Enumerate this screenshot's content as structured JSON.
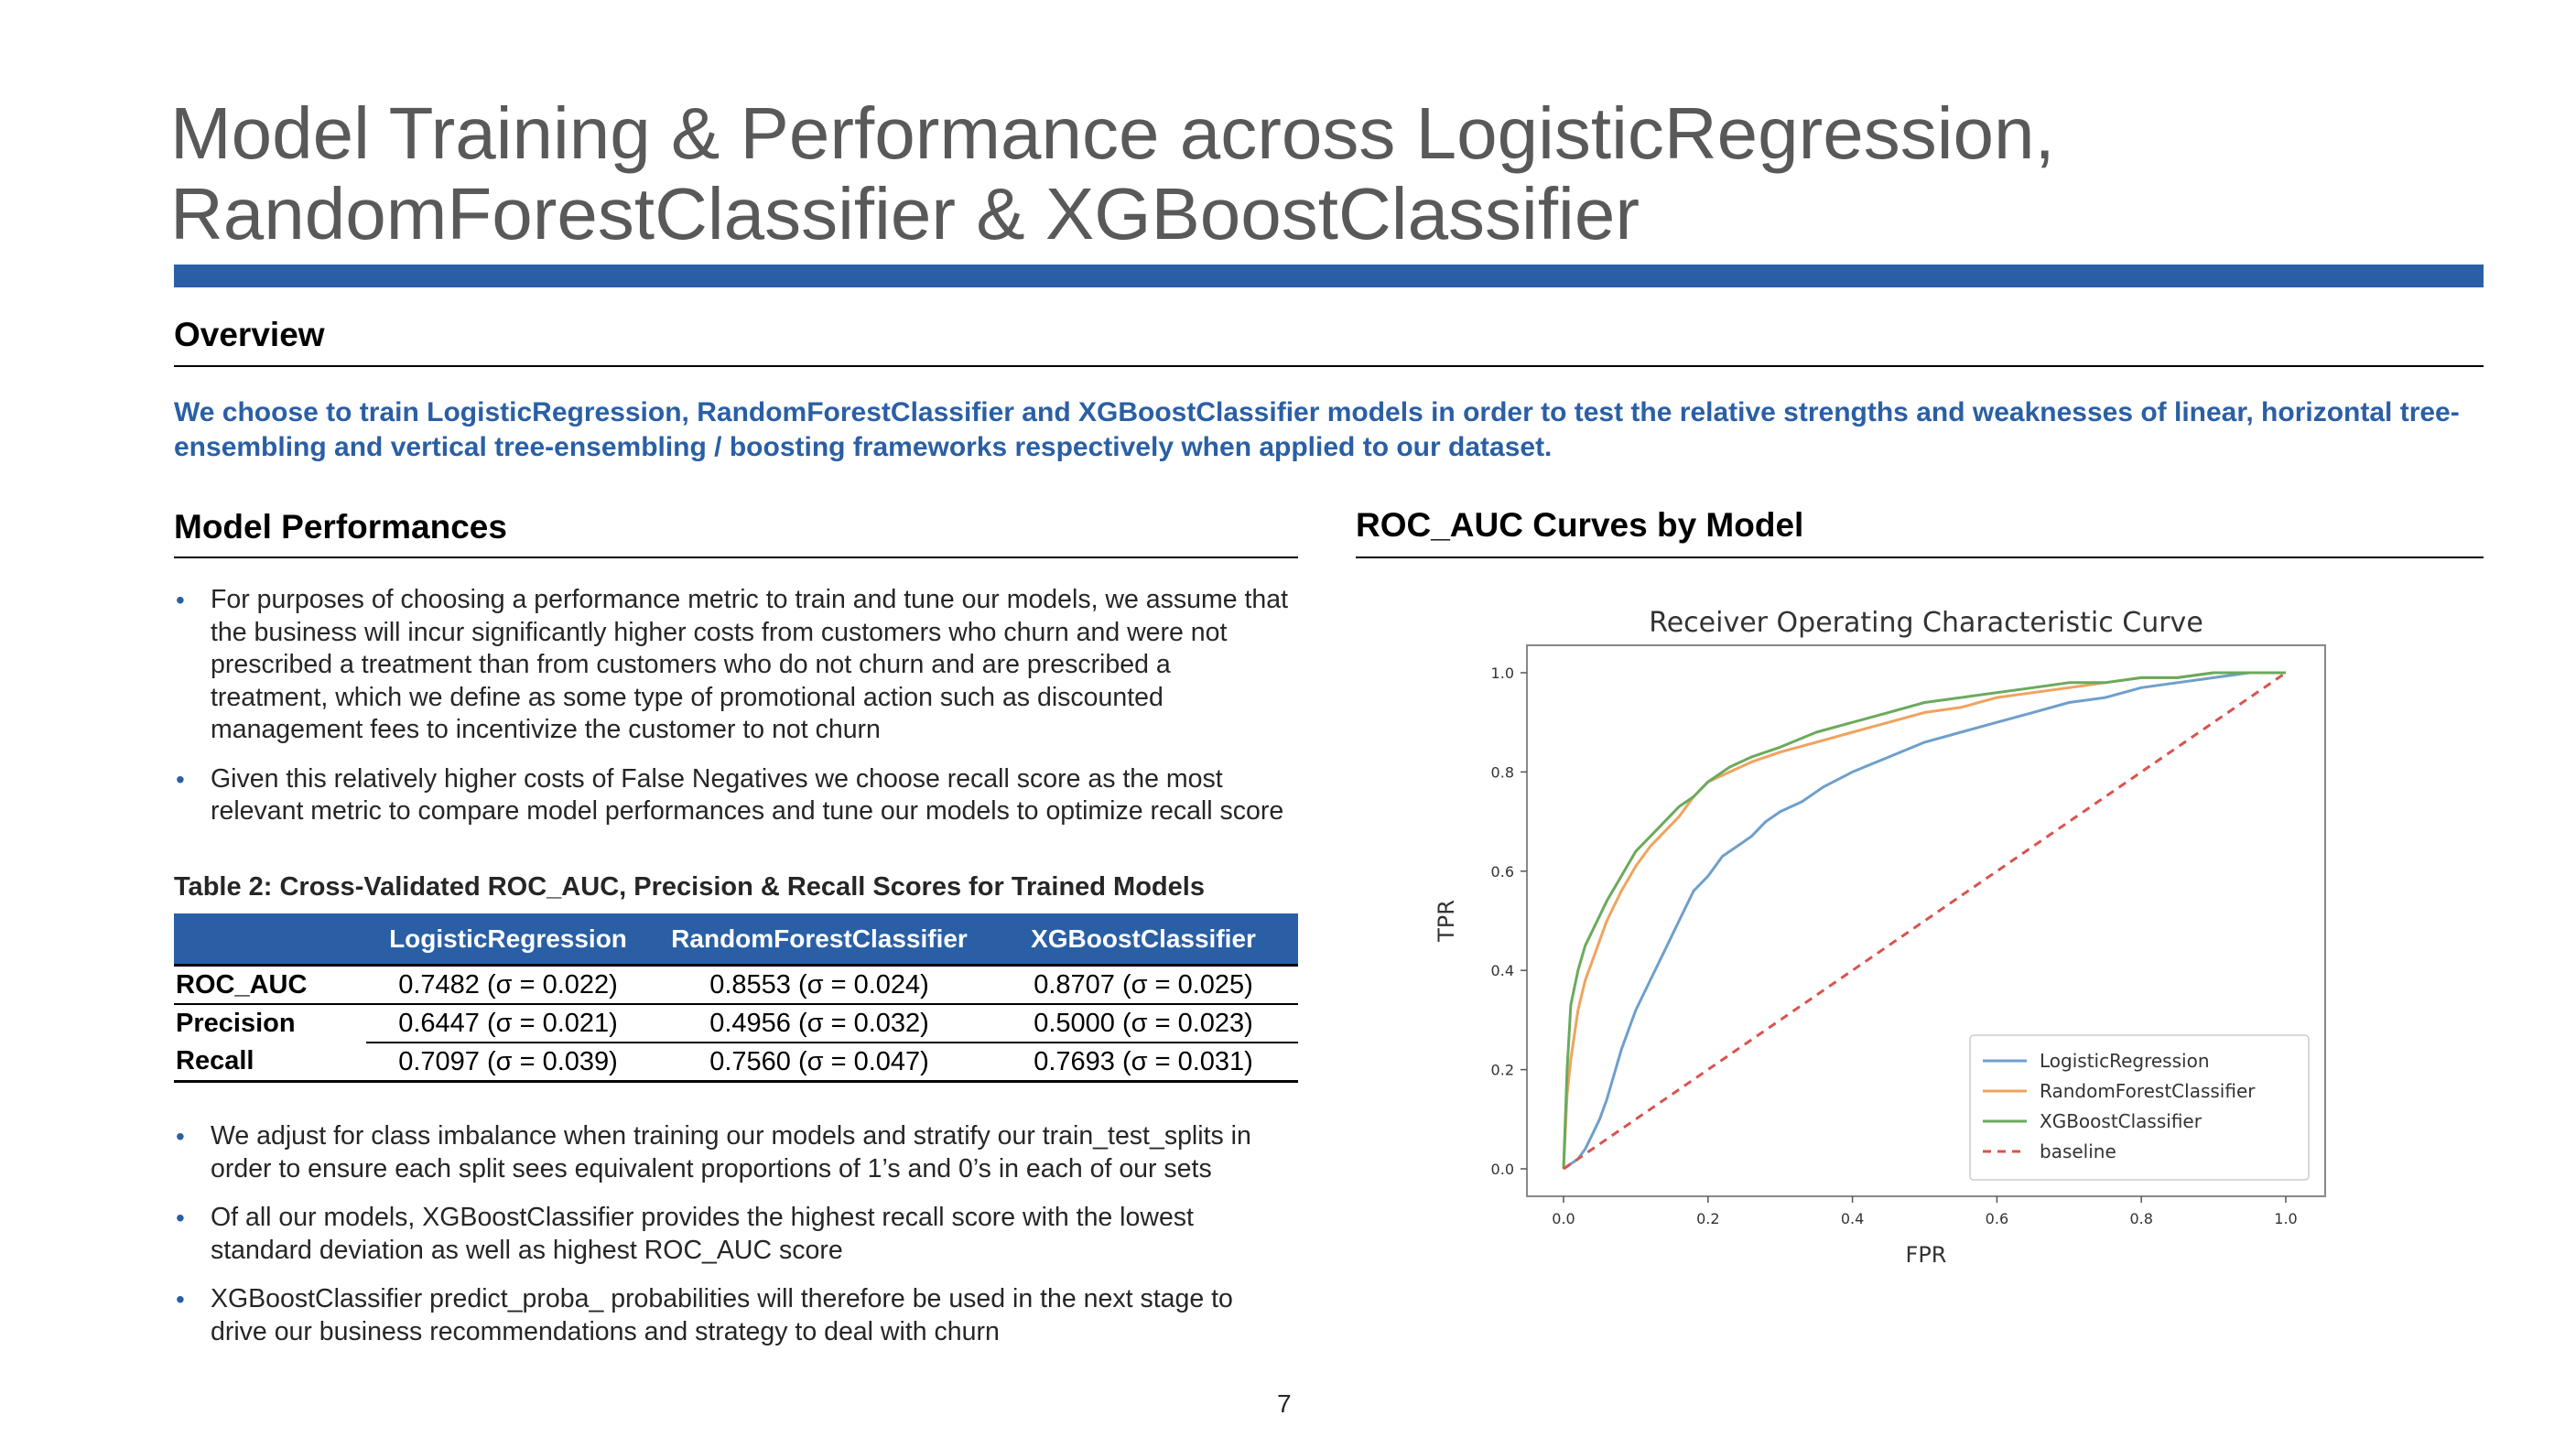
{
  "title": {
    "line1": "Model Training & Performance across LogisticRegression,",
    "line2": "RandomForestClassifier & XGBoostClassifier"
  },
  "overview": {
    "heading": "Overview",
    "text": "We choose to train LogisticRegression, RandomForestClassifier and XGBoostClassifier models in order to test the relative strengths and weaknesses of linear, horizontal tree-ensembling and vertical tree-ensembling / boosting frameworks respectively when applied to our dataset."
  },
  "performance": {
    "heading": "Model Performances",
    "bullets_top": [
      "For purposes of choosing a performance metric to train and tune our models, we assume that the business will incur significantly higher costs from customers who churn and were not prescribed a treatment than from customers who do not churn and are prescribed a treatment, which we define as some type of promotional action such as discounted management fees to incentivize the customer to not churn",
      "Given this relatively higher costs of False Negatives we choose recall score as the most relevant metric to compare model performances and tune our models to optimize recall score"
    ],
    "table_caption": "Table 2: Cross-Validated ROC_AUC, Precision & Recall Scores for Trained Models",
    "table": {
      "headers": [
        "",
        "LogisticRegression",
        "RandomForestClassifier",
        "XGBoostClassifier"
      ],
      "rows": [
        {
          "label": "ROC_AUC",
          "cells": [
            "0.7482 (σ = 0.022)",
            "0.8553 (σ = 0.024)",
            "0.8707 (σ = 0.025)"
          ]
        },
        {
          "label": "Precision",
          "cells": [
            "0.6447 (σ = 0.021)",
            "0.4956 (σ = 0.032)",
            "0.5000 (σ = 0.023)"
          ]
        },
        {
          "label": "Recall",
          "cells": [
            "0.7097 (σ = 0.039)",
            "0.7560 (σ = 0.047)",
            "0.7693 (σ = 0.031)"
          ]
        }
      ]
    },
    "bullets_bottom": [
      "We adjust for class imbalance when training our models and stratify our train_test_splits in order to ensure each split sees equivalent proportions of 1’s and 0’s in each of our sets",
      "Of all our models, XGBoostClassifier provides the highest recall score with the lowest standard deviation as well as highest ROC_AUC score",
      "XGBoostClassifier predict_proba_ probabilities will therefore be used in the next stage to drive our business recommendations and strategy to deal with churn"
    ]
  },
  "roc_section": {
    "heading": "ROC_AUC Curves by Model"
  },
  "page_number": "7",
  "chart_data": {
    "type": "line",
    "title": "Receiver Operating Characteristic Curve",
    "xlabel": "FPR",
    "ylabel": "TPR",
    "xlim": [
      0,
      1
    ],
    "ylim": [
      0,
      1
    ],
    "xticks": [
      "0.0",
      "0.2",
      "0.4",
      "0.6",
      "0.8",
      "1.0"
    ],
    "yticks": [
      "0.0",
      "0.2",
      "0.4",
      "0.6",
      "0.8",
      "1.0"
    ],
    "legend_position": "bottom-right",
    "series": [
      {
        "name": "LogisticRegression",
        "color": "#6e9fcc",
        "x": [
          0,
          0.01,
          0.02,
          0.03,
          0.04,
          0.05,
          0.06,
          0.07,
          0.08,
          0.09,
          0.1,
          0.12,
          0.14,
          0.16,
          0.18,
          0.2,
          0.22,
          0.24,
          0.26,
          0.28,
          0.3,
          0.33,
          0.36,
          0.4,
          0.45,
          0.5,
          0.55,
          0.6,
          0.65,
          0.7,
          0.75,
          0.8,
          0.85,
          0.9,
          0.95,
          1.0
        ],
        "y": [
          0,
          0.01,
          0.02,
          0.04,
          0.07,
          0.1,
          0.14,
          0.19,
          0.24,
          0.28,
          0.32,
          0.38,
          0.44,
          0.5,
          0.56,
          0.59,
          0.63,
          0.65,
          0.67,
          0.7,
          0.72,
          0.74,
          0.77,
          0.8,
          0.83,
          0.86,
          0.88,
          0.9,
          0.92,
          0.94,
          0.95,
          0.97,
          0.98,
          0.99,
          1.0,
          1.0
        ]
      },
      {
        "name": "RandomForestClassifier",
        "color": "#f0a35e",
        "x": [
          0,
          0.005,
          0.01,
          0.02,
          0.03,
          0.04,
          0.05,
          0.06,
          0.08,
          0.1,
          0.12,
          0.14,
          0.16,
          0.18,
          0.2,
          0.23,
          0.26,
          0.3,
          0.35,
          0.4,
          0.45,
          0.5,
          0.55,
          0.6,
          0.65,
          0.7,
          0.75,
          0.8,
          0.85,
          0.9,
          0.95,
          1.0
        ],
        "y": [
          0,
          0.15,
          0.22,
          0.32,
          0.38,
          0.42,
          0.46,
          0.5,
          0.56,
          0.61,
          0.65,
          0.68,
          0.71,
          0.75,
          0.78,
          0.8,
          0.82,
          0.84,
          0.86,
          0.88,
          0.9,
          0.92,
          0.93,
          0.95,
          0.96,
          0.97,
          0.98,
          0.99,
          0.99,
          1.0,
          1.0,
          1.0
        ]
      },
      {
        "name": "XGBoostClassifier",
        "color": "#6aaa5c",
        "x": [
          0,
          0.005,
          0.01,
          0.02,
          0.03,
          0.04,
          0.05,
          0.06,
          0.08,
          0.1,
          0.12,
          0.14,
          0.16,
          0.18,
          0.2,
          0.23,
          0.26,
          0.3,
          0.35,
          0.4,
          0.45,
          0.5,
          0.55,
          0.6,
          0.65,
          0.7,
          0.75,
          0.8,
          0.85,
          0.9,
          0.95,
          1.0
        ],
        "y": [
          0,
          0.2,
          0.33,
          0.4,
          0.45,
          0.48,
          0.51,
          0.54,
          0.59,
          0.64,
          0.67,
          0.7,
          0.73,
          0.75,
          0.78,
          0.81,
          0.83,
          0.85,
          0.88,
          0.9,
          0.92,
          0.94,
          0.95,
          0.96,
          0.97,
          0.98,
          0.98,
          0.99,
          0.99,
          1.0,
          1.0,
          1.0
        ]
      },
      {
        "name": "baseline",
        "color": "#d9534f",
        "dashed": true,
        "x": [
          0,
          1
        ],
        "y": [
          0,
          1
        ]
      }
    ]
  }
}
